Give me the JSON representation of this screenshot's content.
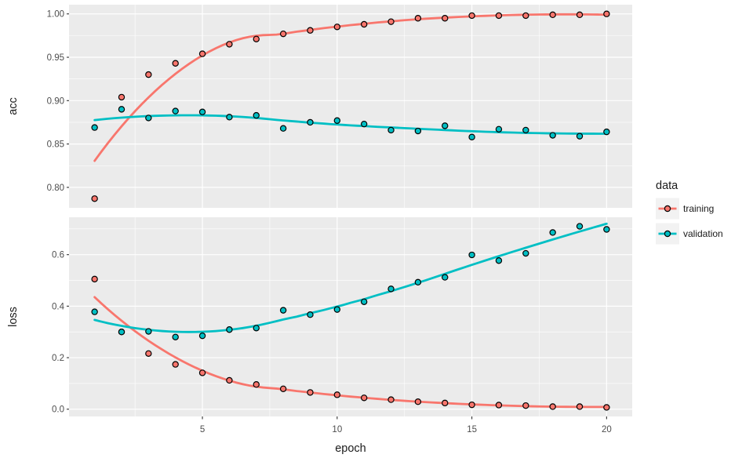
{
  "chart_data": {
    "type": "scatter",
    "title": "",
    "xlabel": "epoch",
    "x": [
      1,
      2,
      3,
      4,
      5,
      6,
      7,
      8,
      9,
      10,
      11,
      12,
      13,
      14,
      15,
      16,
      17,
      18,
      19,
      20
    ],
    "xlim": [
      0.05,
      20.95
    ],
    "xticks": {
      "values": [
        5,
        10,
        15,
        20
      ],
      "labels": [
        "5",
        "10",
        "15",
        "20"
      ]
    },
    "xticks_minor": [
      2.5,
      7.5,
      12.5,
      17.5
    ],
    "grid": true,
    "smoothing": "loess",
    "legend": {
      "title": "data",
      "position": "right",
      "entries": [
        {
          "label": "training",
          "color": "#F8766D"
        },
        {
          "label": "validation",
          "color": "#00BFC4"
        }
      ]
    },
    "facets": [
      {
        "ylabel": "acc",
        "ylim": [
          0.7764,
          1.0106
        ],
        "yticks": {
          "values": [
            0.8,
            0.85,
            0.9,
            0.95,
            1.0
          ],
          "labels": [
            "0.80",
            "0.85",
            "0.90",
            "0.95",
            "1.00"
          ]
        },
        "yticks_minor": [
          0.825,
          0.875,
          0.925,
          0.975
        ],
        "series": [
          {
            "name": "training",
            "color": "#F8766D",
            "values": [
              0.787,
              0.904,
              0.93,
              0.943,
              0.954,
              0.965,
              0.971,
              0.977,
              0.981,
              0.985,
              0.988,
              0.991,
              0.995,
              0.995,
              0.998,
              0.998,
              0.998,
              0.999,
              0.999,
              1.0
            ]
          },
          {
            "name": "validation",
            "color": "#00BFC4",
            "values": [
              0.869,
              0.89,
              0.88,
              0.888,
              0.887,
              0.881,
              0.883,
              0.868,
              0.875,
              0.877,
              0.873,
              0.866,
              0.865,
              0.871,
              0.858,
              0.867,
              0.866,
              0.86,
              0.859,
              0.864
            ]
          }
        ]
      },
      {
        "ylabel": "loss",
        "ylim": [
          -0.0282,
          0.7452
        ],
        "yticks": {
          "values": [
            0.0,
            0.2,
            0.4,
            0.6
          ],
          "labels": [
            "0.0",
            "0.2",
            "0.4",
            "0.6"
          ]
        },
        "yticks_minor": [
          0.1,
          0.3,
          0.5,
          0.7
        ],
        "series": [
          {
            "name": "training",
            "color": "#F8766D",
            "values": [
              0.505,
              0.3,
              0.216,
              0.174,
              0.141,
              0.112,
              0.096,
              0.079,
              0.065,
              0.056,
              0.044,
              0.037,
              0.029,
              0.024,
              0.017,
              0.016,
              0.014,
              0.01,
              0.01,
              0.007
            ]
          },
          {
            "name": "validation",
            "color": "#00BFC4",
            "values": [
              0.378,
              0.3,
              0.302,
              0.28,
              0.285,
              0.309,
              0.315,
              0.384,
              0.367,
              0.387,
              0.417,
              0.467,
              0.493,
              0.512,
              0.599,
              0.577,
              0.605,
              0.686,
              0.71,
              0.698
            ]
          }
        ]
      }
    ]
  },
  "style": {
    "panel_bg": "#EBEBEB",
    "grid_color": "#FFFFFF",
    "axis_text_color": "#4D4D4D",
    "tick_mark_color": "#333333",
    "legend_key_bg": "#F2F2F2",
    "point_stroke": "#000000"
  }
}
